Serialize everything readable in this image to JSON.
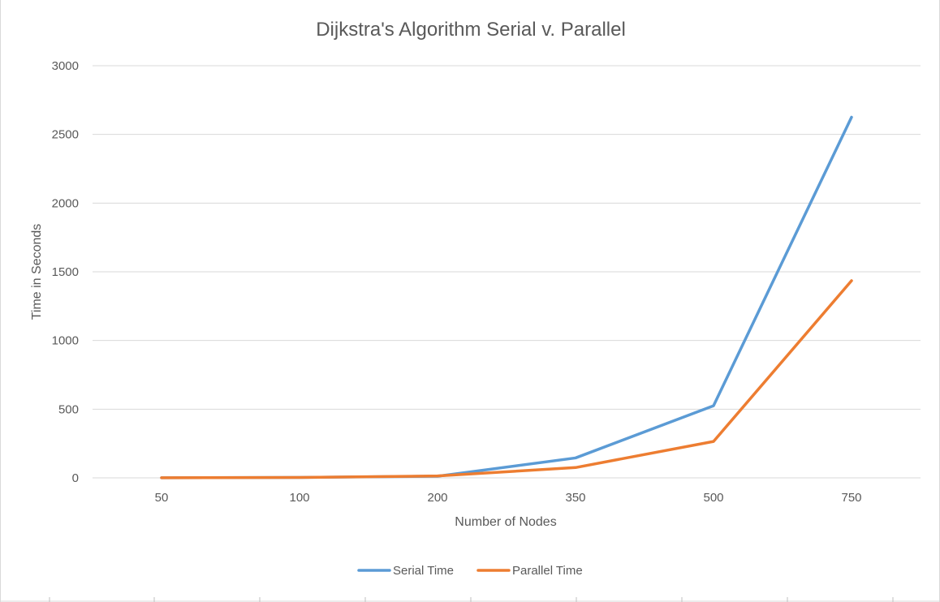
{
  "chart_data": {
    "type": "line",
    "title": "Dijkstra's Algorithm Serial v. Parallel",
    "xlabel": "Number of Nodes",
    "ylabel": "Time in Seconds",
    "categories": [
      "50",
      "100",
      "200",
      "350",
      "500",
      "750"
    ],
    "ylim": [
      0,
      3000
    ],
    "yticks": [
      "0",
      "500",
      "1000",
      "1500",
      "2000",
      "2500",
      "3000"
    ],
    "grid": true,
    "legend_position": "bottom",
    "series": [
      {
        "name": "Serial Time",
        "color": "#5b9bd5",
        "values": [
          1,
          3,
          12,
          145,
          525,
          2625
        ]
      },
      {
        "name": "Parallel Time",
        "color": "#ed7d31",
        "values": [
          1,
          3,
          14,
          75,
          265,
          1435
        ]
      }
    ]
  }
}
